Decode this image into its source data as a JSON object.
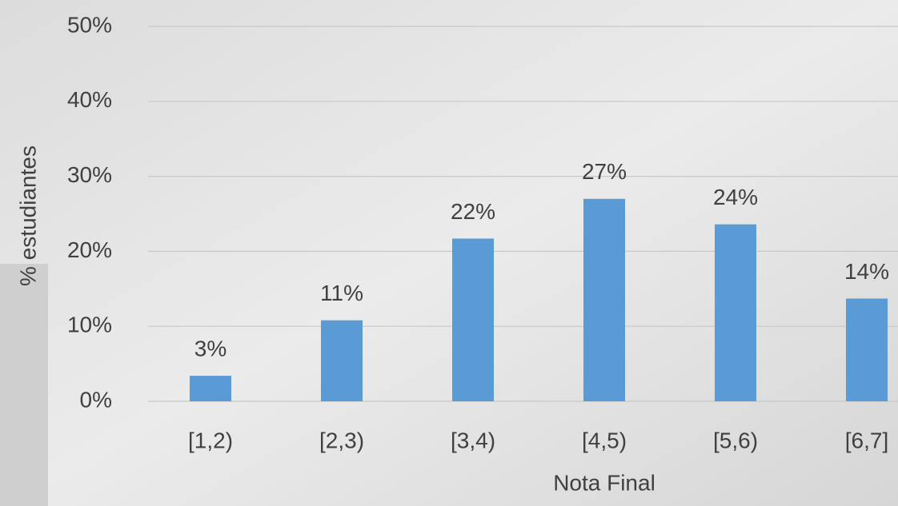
{
  "chart_data": {
    "type": "bar",
    "x_label": "Nota Final",
    "y_label": "% estudiantes",
    "categories": [
      "[1,2)",
      "[2,3)",
      "[3,4)",
      "[4,5)",
      "[5,6)",
      "[6,7]"
    ],
    "values": [
      3.4,
      10.8,
      21.7,
      27.0,
      23.6,
      13.7
    ],
    "value_labels": [
      "3%",
      "11%",
      "22%",
      "27%",
      "24%",
      "14%"
    ],
    "color": "#5b9bd5",
    "ylim": [
      0,
      50
    ],
    "yticks": [
      {
        "value": 0,
        "label": "0%"
      },
      {
        "value": 10,
        "label": "10%"
      },
      {
        "value": 20,
        "label": "20%"
      },
      {
        "value": 30,
        "label": "30%"
      },
      {
        "value": 40,
        "label": "40%"
      },
      {
        "value": 50,
        "label": "50%"
      }
    ],
    "grid": true
  }
}
